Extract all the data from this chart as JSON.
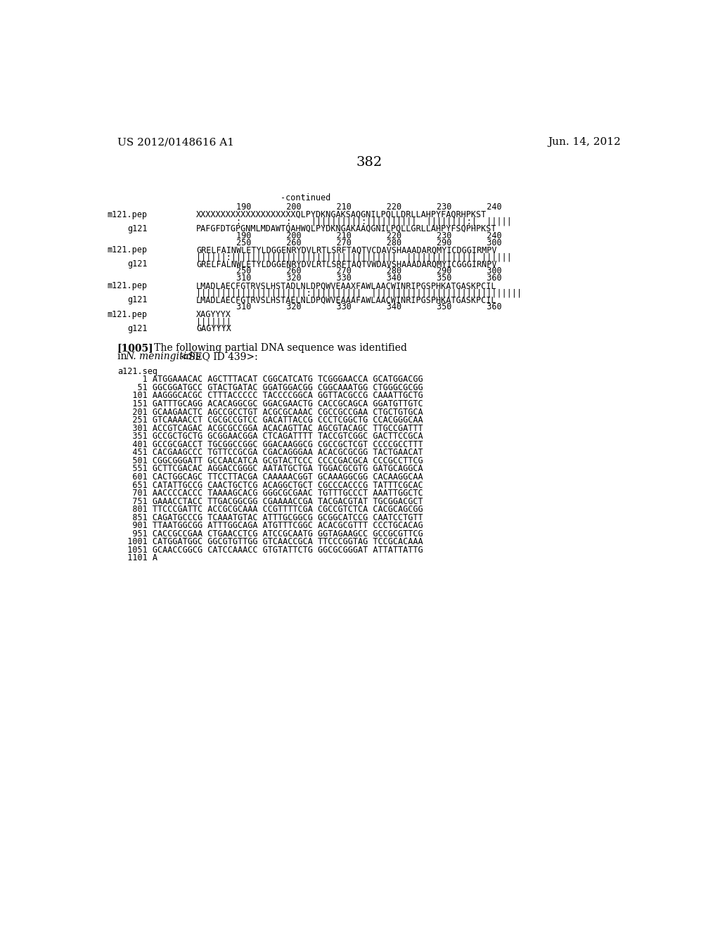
{
  "header_left": "US 2012/0148616 A1",
  "header_right": "Jun. 14, 2012",
  "page_number": "382",
  "continued_label": "-continued",
  "block1_num_top": "        190       200       210       220       230       240",
  "block1_m121_lbl": "m121.pep",
  "block1_m121_seq": "XXXXXXXXXXXXXXXXXXXXQLPYDKNGAKSAQGNILPQLLDRLLAHPYFAQRHPKST",
  "block1_match": "        :         :    ||||||||||:||||||||||  ||||||||:|  |||||",
  "block1_g121_lbl": "g121",
  "block1_g121_seq": "PAFGFDTGPGNMLMDAWTQAHWQLPYDKNGAKAAQGNILPQLLGRLLAHPYFSQPHPKST",
  "block1_num_bot": "        190       200       210       220       230       240",
  "block2_num_top": "        250       260       270       280       290       300",
  "block2_m121_lbl": "m121.pep",
  "block2_m121_seq": "GRELFAINWLETYLDGGENRYDVLRTLSRFTAQTVCDAVSHAAADARQMYICDGGIRMPV",
  "block2_match": "||||||:|||||||||||||||||||||||||||||||||  |||||||||||||| ||||||",
  "block2_g121_lbl": "g121",
  "block2_g121_seq": "GRELFALNWLETYLDGGENRYDVLRTLSRFTAQTVWDAVSHAAADARQMYICGGGIRNPV",
  "block2_num_bot": "        250       260       270       280       290       300",
  "block3_num_top": "        310       320       330       340       350       360",
  "block3_m121_lbl": "m121.pep",
  "block3_m121_seq": "LMADLAECFGTRVSLHSTADLNLDPQWVEAAXFAWLAACWINRIPGSPHKATGASKPCIL",
  "block3_match": "||||||||||||||||||||||:||||||||||  ||||||||||||||||||||||||||||||",
  "block3_g121_lbl": "g121",
  "block3_g121_seq": "LMADLAECFGTRVSLHSTAELNLDPQWVEAAAFAWLAACWINRIPGSPHKATGASKPCIL",
  "block3_num_bot": "        310       320       330       340       350       360",
  "block4_m121_lbl": "m121.pep",
  "block4_m121_seq": "XAGYYYX",
  "block4_match": "|||||||",
  "block4_g121_lbl": "g121",
  "block4_g121_seq": "GAGYYYX",
  "para_tag": "[1005]",
  "para_text": "   The following partial DNA sequence was identified",
  "para_line2a": "in ",
  "para_line2b": "N. meningitidis",
  "para_line2c": " <SEQ ID 439>:",
  "dna_label": "a121.seq",
  "dna_lines": [
    "     1 ATGGAAACAC AGCTTTACAT CGGCATCATG TCGGGAACCA GCATGGACGG",
    "    51 GGCGGATGCC GTACTGATAC GGATGGACGG CGGCAAATGG CTGGGCGCGG",
    "   101 AAGGGCACGC CTTTACCCCC TACCCCGGCA GGTTACGCCG CAAATTGCTG",
    "   151 GATTTGCAGG ACACAGGCGC GGACGAACTG CACCGCAGCA GGATGTTGTC",
    "   201 GCAAGAACTC AGCCGCCTGT ACGCGCAAAC CGCCGCCGAA CTGCTGTGCA",
    "   251 GTCAAAACCT CGCGCCGTCC GACATTACCG CCCTCGGCTG CCACGGGCAA",
    "   301 ACCGTCAGAC ACGCGCCGGA ACACAGTTAC AGCGTACAGC TTGCCGATTT",
    "   351 GCCGCTGCTG GCGGAACGGA CTCAGATTTT TACCGTCGGC GACTTCCGCA",
    "   401 GCCGCGACCT TGCGGCCGGC GGACAAGGCG CGCCGCTCGT CCCCGCCTTT",
    "   451 CACGAAGCCC TGTTCCGCGA CGACAGGGAA ACACGCGCGG TACTGAACAT",
    "   501 CGGCGGGATT GCCAACATCA GCGTACTCCC CCCCGACGCA CCCGCCTTCG",
    "   551 GCTTCGACAC AGGACCGGGC AATATGCTGA TGGACGCGTG GATGCAGGCA",
    "   601 CACTGGCAGC TTCCTTACGA CAAAAACGGT GCAAAGGCGG CACAAGGCAA",
    "   651 CATATTGCCG CAACTGCTCG ACAGGCTGCT CGCCCACCCG TATTTCGCAC",
    "   701 AACCCCACCC TAAAAGCACG GGGCGCGAAC TGTTTGCCCT AAATTGGCTC",
    "   751 GAAACCTACC TTGACGGCGG CGAAAACCGA TACGACGTAT TGCGGACGCT",
    "   801 TTCCCGATTC ACCGCGCAAA CCGTTTTCGA CGCCGTCTCA CACGCAGCGG",
    "   851 CAGATGCCCG TCAAATGTAC ATTTGCGGCG GCGGCATCCG CAATCCTGTT",
    "   901 TTAATGGCGG ATTTGGCAGA ATGTTTCGGC ACACGCGTTT CCCTGCACAG",
    "   951 CACCGCCGAA CTGAACCTCG ATCCGCAATG GGTAGAAGCC GCCGCGTTCG",
    "  1001 CATGGATGGC GGCGTGTTGG GTCAACCGCA TTCCCGGTAG TCCGCACAAA",
    "  1051 GCAACCGGCG CATCCAAACC GTGTATTCTG GGCGCGGGAT ATTATTATTG",
    "  1101 A"
  ]
}
